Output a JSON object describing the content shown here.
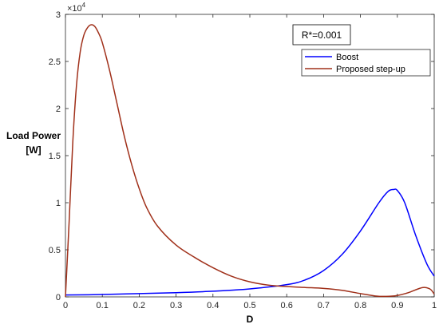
{
  "chart_data": {
    "type": "line",
    "title": "",
    "xlabel": "D",
    "ylabel_lines": [
      "Load Power",
      "[W]"
    ],
    "xlim": [
      0,
      1
    ],
    "ylim": [
      0,
      30000
    ],
    "x_ticks": [
      0,
      0.1,
      0.2,
      0.3,
      0.4,
      0.5,
      0.6,
      0.7,
      0.8,
      0.9,
      1
    ],
    "x_tick_labels": [
      "0",
      "0.1",
      "0.2",
      "0.3",
      "0.4",
      "0.5",
      "0.6",
      "0.7",
      "0.8",
      "0.9",
      "1"
    ],
    "y_ticks": [
      0,
      5000,
      10000,
      15000,
      20000,
      25000,
      30000
    ],
    "y_tick_labels": [
      "0",
      "0.5",
      "1",
      "1.5",
      "2",
      "2.5",
      "3"
    ],
    "y_exponent_base": "×10",
    "y_exponent_power": "4",
    "grid": false,
    "legend_position": "top-right",
    "annotation": "R*=0.001",
    "series": [
      {
        "name": "Boost",
        "color": "#0000ff",
        "x": [
          0,
          0.1,
          0.2,
          0.3,
          0.4,
          0.5,
          0.6,
          0.65,
          0.7,
          0.75,
          0.8,
          0.85,
          0.875,
          0.89,
          0.9,
          0.92,
          0.95,
          0.98,
          1.0
        ],
        "y": [
          200,
          250,
          350,
          450,
          600,
          850,
          1300,
          1800,
          2800,
          4500,
          7000,
          10000,
          11200,
          11400,
          11300,
          10000,
          6500,
          3500,
          2200
        ]
      },
      {
        "name": "Proposed step-up",
        "color": "#a0301a",
        "x": [
          0,
          0.01,
          0.02,
          0.03,
          0.04,
          0.05,
          0.06,
          0.07,
          0.08,
          0.09,
          0.1,
          0.12,
          0.14,
          0.16,
          0.18,
          0.2,
          0.22,
          0.25,
          0.3,
          0.35,
          0.4,
          0.45,
          0.5,
          0.55,
          0.6,
          0.65,
          0.7,
          0.75,
          0.8,
          0.84,
          0.87,
          0.9,
          0.93,
          0.96,
          0.975,
          0.99,
          1.0
        ],
        "y": [
          0,
          8000,
          16500,
          22500,
          26000,
          27800,
          28600,
          28900,
          28700,
          28000,
          27000,
          24000,
          20500,
          17000,
          14000,
          11500,
          9500,
          7500,
          5500,
          4200,
          3100,
          2200,
          1600,
          1250,
          1100,
          1000,
          900,
          700,
          350,
          100,
          50,
          150,
          450,
          900,
          1000,
          800,
          300
        ]
      }
    ]
  }
}
